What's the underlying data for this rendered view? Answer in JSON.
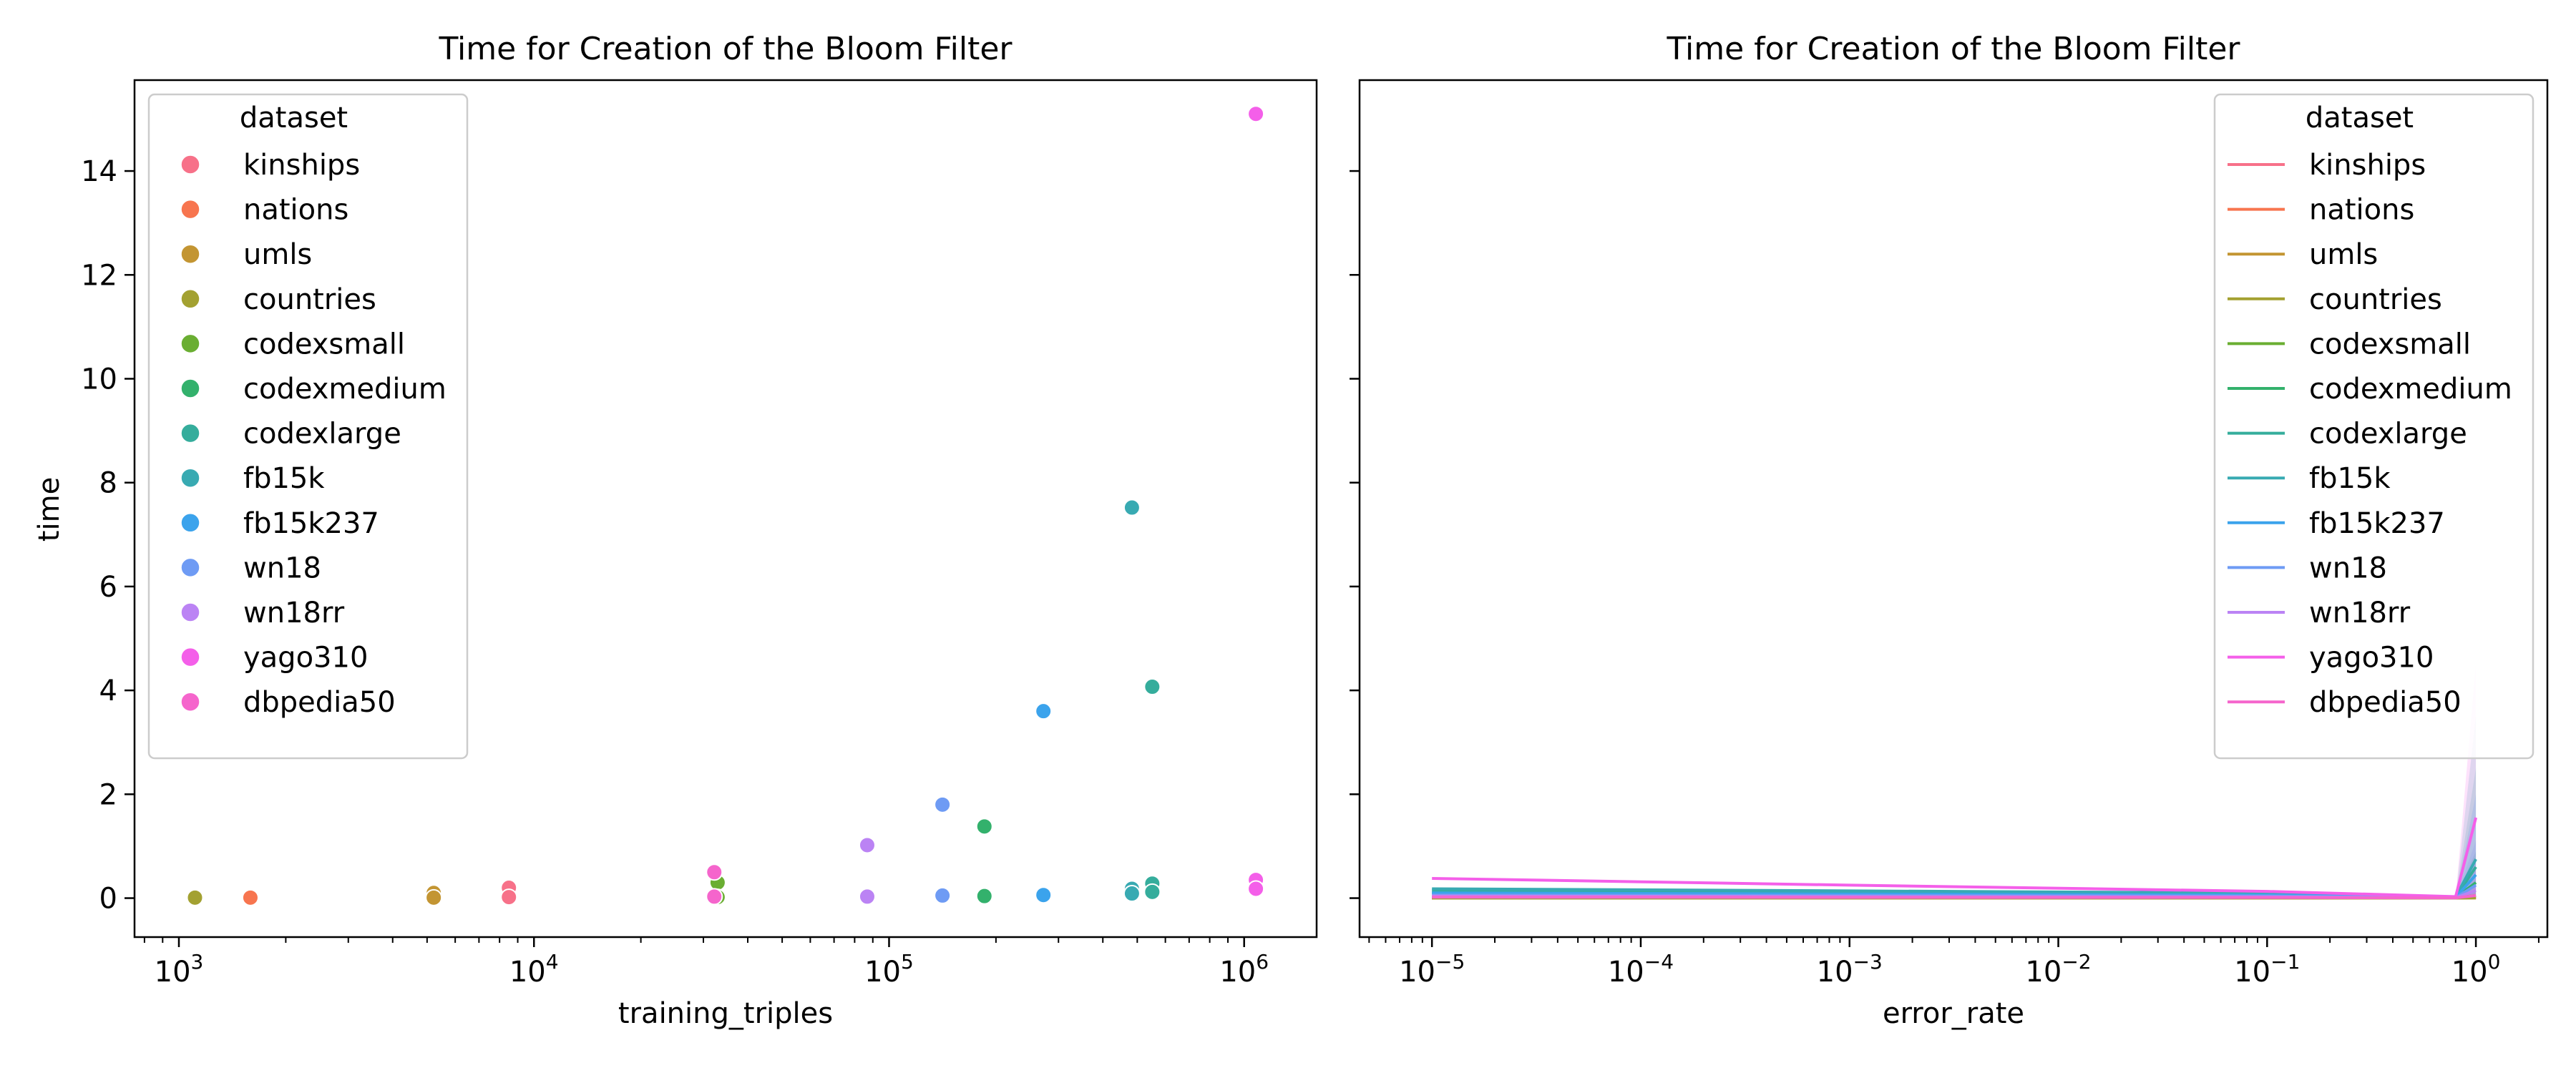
{
  "chart_data": [
    {
      "type": "scatter",
      "title": "Time for Creation of the Bloom Filter",
      "xlabel": "training_triples",
      "ylabel": "time",
      "xscale": "log",
      "xlim": [
        750,
        1600000
      ],
      "ylim": [
        -0.75,
        15.75
      ],
      "xticks": [
        {
          "base": "10",
          "exp": "3"
        },
        {
          "base": "10",
          "exp": "4"
        },
        {
          "base": "10",
          "exp": "5"
        },
        {
          "base": "10",
          "exp": "6"
        }
      ],
      "yticks": [
        "0",
        "2",
        "4",
        "6",
        "8",
        "10",
        "12",
        "14"
      ],
      "grid": false,
      "legend": {
        "title": "dataset",
        "placement": "top-left",
        "marker": "circle"
      },
      "series": [
        {
          "name": "kinships",
          "color": "#f77189",
          "points": [
            [
              8500,
              0.2
            ],
            [
              8500,
              0.02
            ]
          ]
        },
        {
          "name": "nations",
          "color": "#f7754f",
          "points": [
            [
              1590,
              0.02
            ],
            [
              1590,
              0.01
            ]
          ]
        },
        {
          "name": "umls",
          "color": "#c39532",
          "points": [
            [
              5220,
              0.1
            ],
            [
              5220,
              0.01
            ]
          ]
        },
        {
          "name": "countries",
          "color": "#a3a131",
          "points": [
            [
              1110,
              0.02
            ],
            [
              1110,
              0.01
            ]
          ]
        },
        {
          "name": "codexsmall",
          "color": "#6aae32",
          "points": [
            [
              32900,
              0.3
            ],
            [
              32900,
              0.02
            ]
          ]
        },
        {
          "name": "codexmedium",
          "color": "#33b16c",
          "points": [
            [
              185600,
              1.38
            ],
            [
              185600,
              0.04
            ]
          ]
        },
        {
          "name": "codexlarge",
          "color": "#35ad9c",
          "points": [
            [
              551200,
              4.07
            ],
            [
              551200,
              0.28
            ],
            [
              551200,
              0.12
            ]
          ]
        },
        {
          "name": "fb15k",
          "color": "#38aab2",
          "points": [
            [
              483100,
              7.52
            ],
            [
              483100,
              0.18
            ],
            [
              483100,
              0.09
            ]
          ]
        },
        {
          "name": "fb15k237",
          "color": "#3ba3ec",
          "points": [
            [
              272100,
              3.6
            ],
            [
              272100,
              0.06
            ]
          ]
        },
        {
          "name": "wn18",
          "color": "#6e9bf4",
          "points": [
            [
              141400,
              1.8
            ],
            [
              141400,
              0.05
            ]
          ]
        },
        {
          "name": "wn18rr",
          "color": "#bb83f4",
          "points": [
            [
              86800,
              1.02
            ],
            [
              86800,
              0.03
            ]
          ]
        },
        {
          "name": "yago310",
          "color": "#f45fe9",
          "points": [
            [
              1079000,
              15.1
            ],
            [
              1079000,
              0.35
            ],
            [
              1079000,
              0.18
            ]
          ]
        },
        {
          "name": "dbpedia50",
          "color": "#f565cc",
          "points": [
            [
              32200,
              0.5
            ],
            [
              32200,
              0.03
            ]
          ]
        }
      ]
    },
    {
      "type": "line",
      "title": "Time for Creation of the Bloom Filter",
      "xlabel": "error_rate",
      "ylabel": "",
      "xscale": "log",
      "xlim": [
        4.5e-06,
        2.2
      ],
      "ylim": [
        -0.75,
        15.75
      ],
      "xticks": [
        {
          "base": "10",
          "exp": "−5"
        },
        {
          "base": "10",
          "exp": "−4"
        },
        {
          "base": "10",
          "exp": "−3"
        },
        {
          "base": "10",
          "exp": "−2"
        },
        {
          "base": "10",
          "exp": "−1"
        },
        {
          "base": "10",
          "exp": "0"
        }
      ],
      "grid": false,
      "sharey": true,
      "legend": {
        "title": "dataset",
        "placement": "top-right",
        "marker": "line"
      },
      "x": [
        1e-05,
        0.001,
        0.1,
        0.8,
        1.0
      ],
      "series": [
        {
          "name": "kinships",
          "color": "#f77189",
          "values": [
            0.005,
            0.004,
            0.003,
            0.002,
            0.01
          ],
          "band": [
            0.0,
            0.03
          ]
        },
        {
          "name": "nations",
          "color": "#f7754f",
          "values": [
            0.002,
            0.002,
            0.002,
            0.001,
            0.005
          ],
          "band": [
            0.0,
            0.01
          ]
        },
        {
          "name": "umls",
          "color": "#c39532",
          "values": [
            0.004,
            0.003,
            0.003,
            0.002,
            0.01
          ],
          "band": [
            0.0,
            0.03
          ]
        },
        {
          "name": "countries",
          "color": "#a3a131",
          "values": [
            0.002,
            0.002,
            0.002,
            0.001,
            0.005
          ],
          "band": [
            0.0,
            0.01
          ]
        },
        {
          "name": "codexsmall",
          "color": "#6aae32",
          "values": [
            0.02,
            0.015,
            0.01,
            0.005,
            0.05
          ],
          "band": [
            0.0,
            0.15
          ]
        },
        {
          "name": "codexmedium",
          "color": "#33b16c",
          "values": [
            0.1,
            0.08,
            0.06,
            0.01,
            0.3
          ],
          "band": [
            0.0,
            0.9
          ]
        },
        {
          "name": "codexlarge",
          "color": "#35ad9c",
          "values": [
            0.15,
            0.12,
            0.09,
            0.02,
            0.6
          ],
          "band": [
            0.0,
            2.5
          ]
        },
        {
          "name": "fb15k",
          "color": "#38aab2",
          "values": [
            0.18,
            0.14,
            0.1,
            0.02,
            0.75
          ],
          "band": [
            0.0,
            3.5
          ]
        },
        {
          "name": "fb15k237",
          "color": "#3ba3ec",
          "values": [
            0.1,
            0.08,
            0.06,
            0.015,
            0.45
          ],
          "band": [
            0.0,
            2.0
          ]
        },
        {
          "name": "wn18",
          "color": "#6e9bf4",
          "values": [
            0.06,
            0.05,
            0.04,
            0.01,
            0.25
          ],
          "band": [
            0.0,
            1.1
          ]
        },
        {
          "name": "wn18rr",
          "color": "#bb83f4",
          "values": [
            0.04,
            0.03,
            0.025,
            0.008,
            0.15
          ],
          "band": [
            0.0,
            0.7
          ]
        },
        {
          "name": "yago310",
          "color": "#f45fe9",
          "values": [
            0.38,
            0.25,
            0.13,
            0.03,
            1.55
          ],
          "band": [
            0.0,
            4.5
          ]
        },
        {
          "name": "dbpedia50",
          "color": "#f565cc",
          "values": [
            0.02,
            0.015,
            0.012,
            0.005,
            0.05
          ],
          "band": [
            0.0,
            0.3
          ]
        }
      ]
    }
  ]
}
